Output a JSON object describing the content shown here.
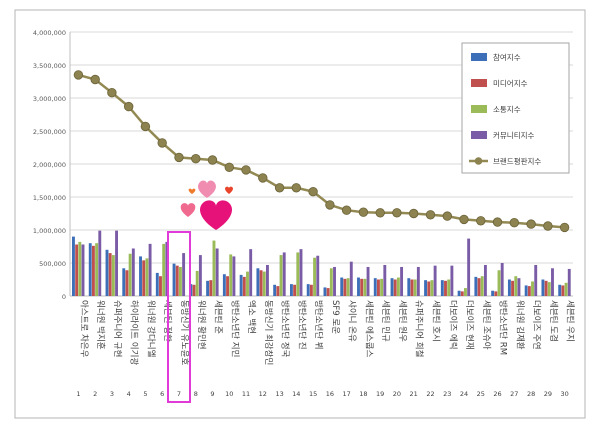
{
  "chart_data": {
    "type": "bar",
    "title": "",
    "xlabel": "",
    "ylabel": "",
    "ylim": [
      0,
      4000000
    ],
    "y_ticks": [
      "0",
      "500,000",
      "1,000,000",
      "1,500,000",
      "2,000,000",
      "2,500,000",
      "3,000,000",
      "3,500,000",
      "4,000,000"
    ],
    "y_tick_values": [
      0,
      500000,
      1000000,
      1500000,
      2000000,
      2500000,
      3000000,
      3500000,
      4000000
    ],
    "grid": true,
    "legend_position": "top-right",
    "ranks": [
      "1",
      "2",
      "3",
      "4",
      "5",
      "6",
      "7",
      "8",
      "9",
      "10",
      "11",
      "12",
      "13",
      "14",
      "15",
      "16",
      "17",
      "18",
      "19",
      "20",
      "21",
      "22",
      "23",
      "24",
      "25",
      "26",
      "27",
      "28",
      "29",
      "30"
    ],
    "categories": [
      "아스트로 차은우",
      "워너원 박지훈",
      "슈퍼주니어 규현",
      "하이라이트 이기광",
      "워너원 강다니엘",
      "세븐틴 정한",
      "동방신기 유노윤호",
      "워너원 황민현",
      "세븐틴 준",
      "방탄소년단 지민",
      "엑소 백현",
      "동방신기 최강창민",
      "방탄소년단 정국",
      "방탄소년단 진",
      "방탄소년단 뷔",
      "SF9 로운",
      "샤이니 온유",
      "세븐틴 에스쿱스",
      "세븐틴 민규",
      "세븐틴 원우",
      "슈퍼주니어 희철",
      "세븐틴 호시",
      "더보이즈 에릭",
      "더보이즈 현재",
      "세븐틴 조슈아",
      "방탄소년단 RM",
      "워너원 김재환",
      "더보이즈 주연",
      "세븐틴 도겸",
      "세븐틴 우지"
    ],
    "series": [
      {
        "name": "참여지수",
        "color": "#3d6fb8",
        "values": [
          900000,
          800000,
          700000,
          420000,
          600000,
          350000,
          490000,
          180000,
          230000,
          330000,
          320000,
          420000,
          170000,
          180000,
          180000,
          130000,
          280000,
          280000,
          270000,
          270000,
          270000,
          240000,
          240000,
          80000,
          290000,
          80000,
          250000,
          160000,
          250000,
          170000
        ]
      },
      {
        "name": "미디어지수",
        "color": "#c0504d",
        "values": [
          780000,
          760000,
          650000,
          390000,
          540000,
          300000,
          460000,
          170000,
          240000,
          300000,
          290000,
          390000,
          150000,
          170000,
          170000,
          120000,
          260000,
          260000,
          250000,
          250000,
          250000,
          220000,
          230000,
          70000,
          270000,
          70000,
          230000,
          150000,
          230000,
          160000
        ]
      },
      {
        "name": "소통지수",
        "color": "#9bbb59",
        "values": [
          820000,
          800000,
          620000,
          640000,
          570000,
          790000,
          440000,
          380000,
          840000,
          630000,
          370000,
          370000,
          620000,
          660000,
          580000,
          420000,
          270000,
          260000,
          260000,
          280000,
          250000,
          240000,
          250000,
          120000,
          300000,
          390000,
          300000,
          220000,
          210000,
          200000
        ]
      },
      {
        "name": "커뮤니티지수",
        "color": "#7a5ba6",
        "values": [
          780000,
          990000,
          990000,
          720000,
          790000,
          820000,
          650000,
          620000,
          720000,
          600000,
          710000,
          470000,
          660000,
          710000,
          610000,
          440000,
          520000,
          440000,
          470000,
          440000,
          440000,
          460000,
          460000,
          870000,
          470000,
          500000,
          270000,
          470000,
          420000,
          410000
        ]
      },
      {
        "name": "브랜드평판지수",
        "color": "#938953",
        "kind": "line",
        "values": [
          3350000,
          3280000,
          3080000,
          2870000,
          2570000,
          2320000,
          2100000,
          2080000,
          2060000,
          1950000,
          1910000,
          1790000,
          1640000,
          1640000,
          1580000,
          1380000,
          1300000,
          1270000,
          1260000,
          1260000,
          1250000,
          1230000,
          1210000,
          1160000,
          1140000,
          1120000,
          1110000,
          1090000,
          1060000,
          1040000
        ]
      }
    ],
    "highlight_rank": "7"
  }
}
